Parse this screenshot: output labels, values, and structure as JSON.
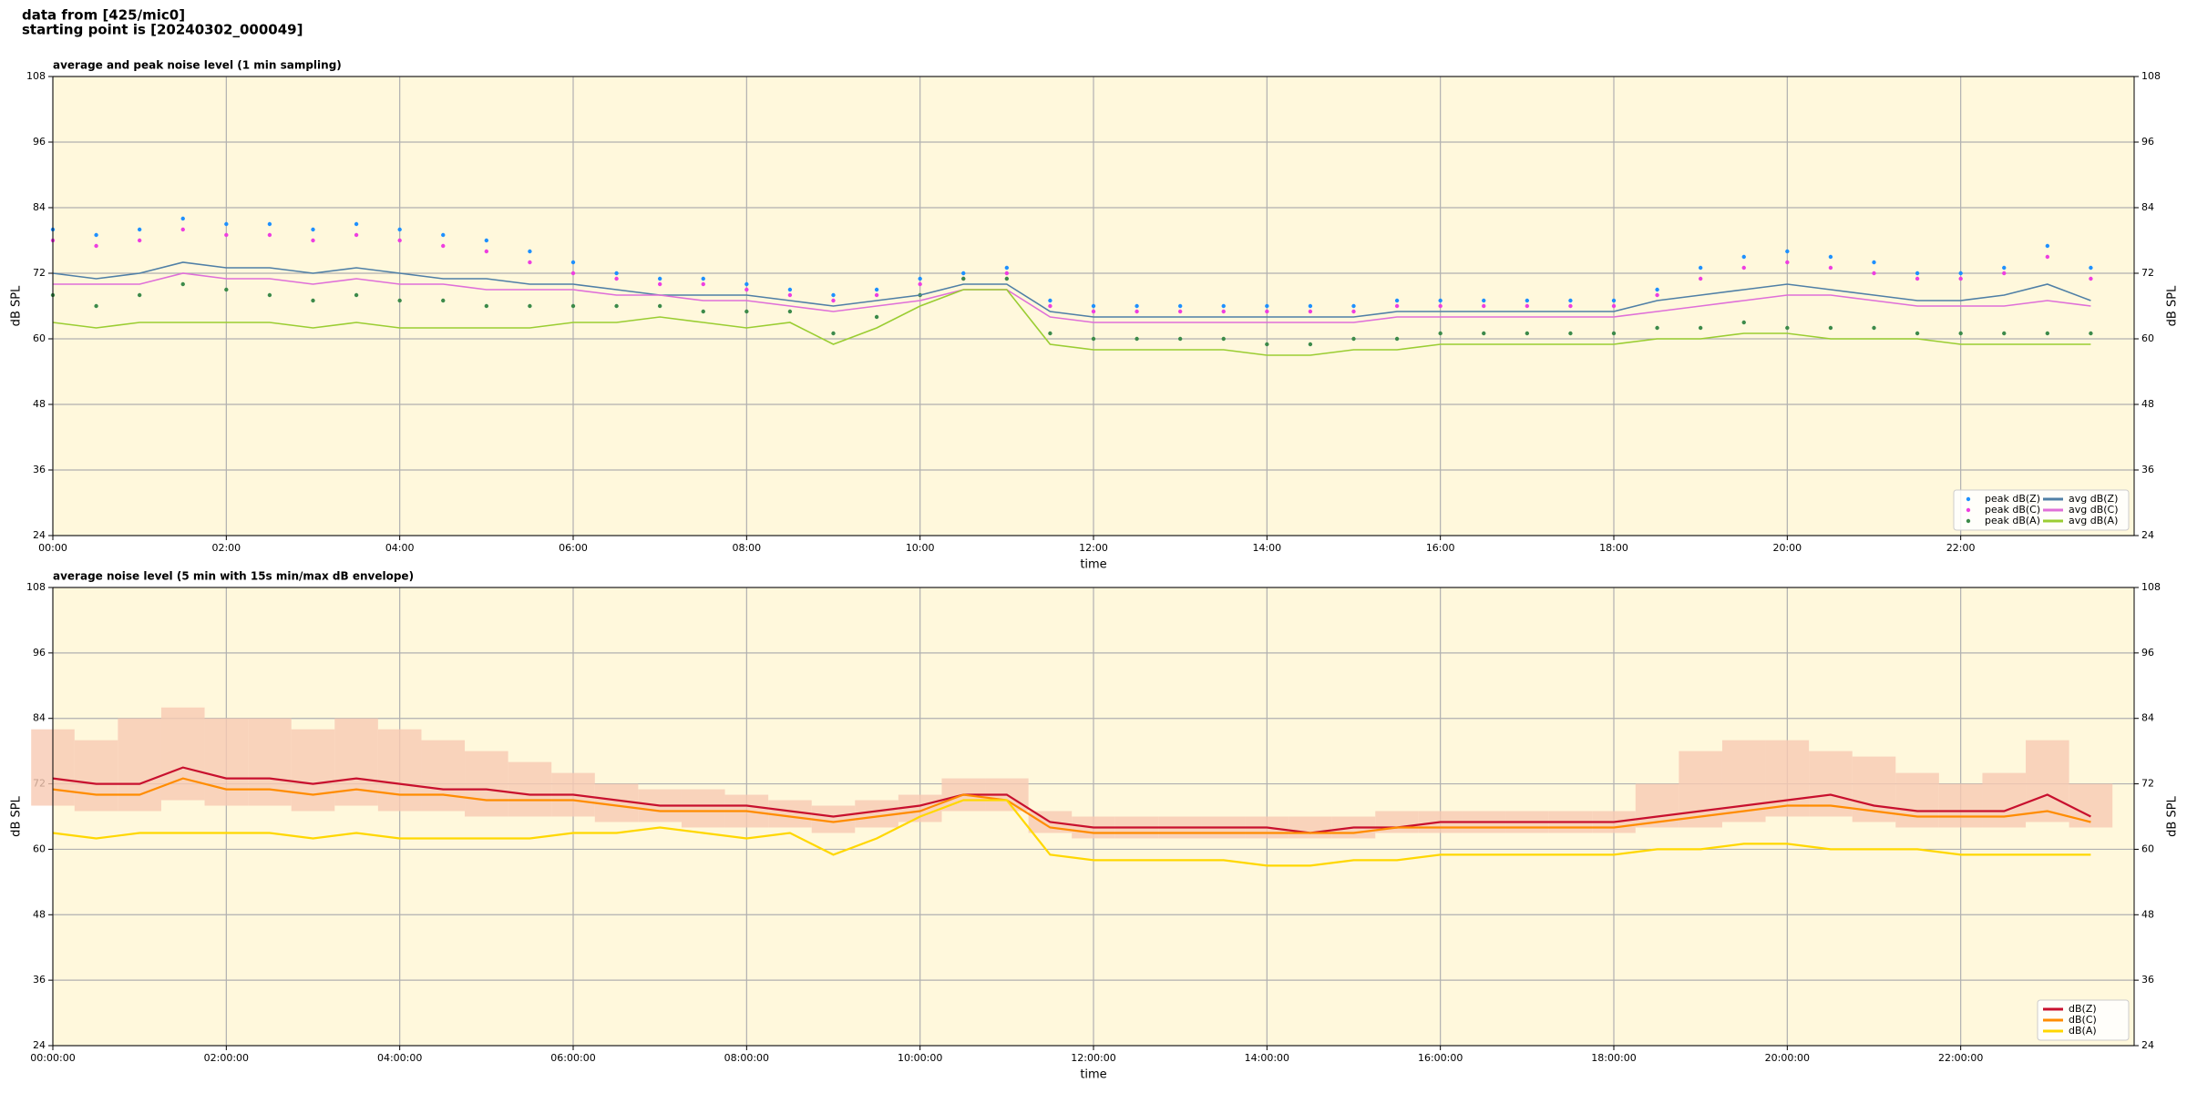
{
  "header": {
    "lines": [
      "data from [425/mic0]",
      "starting point is [20240302_000049]"
    ]
  },
  "chart_data": [
    {
      "type": "line",
      "title": "average and peak noise level (1 min sampling)",
      "x_label": "time",
      "y_label": "dB SPL",
      "xlim": [
        0,
        24
      ],
      "ylim": [
        24,
        108
      ],
      "xticks": [
        {
          "value": 0,
          "label": "00:00"
        },
        {
          "value": 2,
          "label": "02:00"
        },
        {
          "value": 4,
          "label": "04:00"
        },
        {
          "value": 6,
          "label": "06:00"
        },
        {
          "value": 8,
          "label": "08:00"
        },
        {
          "value": 10,
          "label": "10:00"
        },
        {
          "value": 12,
          "label": "12:00"
        },
        {
          "value": 14,
          "label": "14:00"
        },
        {
          "value": 16,
          "label": "16:00"
        },
        {
          "value": 18,
          "label": "18:00"
        },
        {
          "value": 20,
          "label": "20:00"
        },
        {
          "value": 22,
          "label": "22:00"
        }
      ],
      "yticks": [
        24,
        36,
        48,
        60,
        72,
        84,
        96,
        108
      ],
      "grid": true,
      "legend": "lower right",
      "legend_ncol": 2,
      "background": "#fff8dc",
      "x": [
        0,
        0.5,
        1,
        1.5,
        2,
        2.5,
        3,
        3.5,
        4,
        4.5,
        5,
        5.5,
        6,
        6.5,
        7,
        7.5,
        8,
        8.5,
        9,
        9.5,
        10,
        10.5,
        11,
        11.5,
        12,
        12.5,
        13,
        13.5,
        14,
        14.5,
        15,
        15.5,
        16,
        16.5,
        17,
        17.5,
        18,
        18.5,
        19,
        19.5,
        20,
        20.5,
        21,
        21.5,
        22,
        22.5,
        23,
        23.5
      ],
      "series": [
        {
          "name": "peak dB(Z)",
          "mode": "markers",
          "color": "#1e90ff",
          "values": [
            80,
            79,
            80,
            82,
            81,
            81,
            80,
            81,
            80,
            79,
            78,
            76,
            74,
            72,
            71,
            71,
            70,
            69,
            68,
            69,
            71,
            72,
            73,
            67,
            66,
            66,
            66,
            66,
            66,
            66,
            66,
            67,
            67,
            67,
            67,
            67,
            67,
            69,
            73,
            75,
            76,
            75,
            74,
            72,
            72,
            73,
            77,
            73
          ]
        },
        {
          "name": "peak dB(C)",
          "mode": "markers",
          "color": "#ee3ee0",
          "values": [
            78,
            77,
            78,
            80,
            79,
            79,
            78,
            79,
            78,
            77,
            76,
            74,
            72,
            71,
            70,
            70,
            69,
            68,
            67,
            68,
            70,
            71,
            72,
            66,
            65,
            65,
            65,
            65,
            65,
            65,
            65,
            66,
            66,
            66,
            66,
            66,
            66,
            68,
            71,
            73,
            74,
            73,
            72,
            71,
            71,
            72,
            75,
            71
          ]
        },
        {
          "name": "peak dB(A)",
          "mode": "markers",
          "color": "#3c8a4a",
          "values": [
            68,
            66,
            68,
            70,
            69,
            68,
            67,
            68,
            67,
            67,
            66,
            66,
            66,
            66,
            66,
            65,
            65,
            65,
            61,
            64,
            68,
            71,
            71,
            61,
            60,
            60,
            60,
            60,
            59,
            59,
            60,
            60,
            61,
            61,
            61,
            61,
            61,
            62,
            62,
            63,
            62,
            62,
            62,
            61,
            61,
            61,
            61,
            61
          ]
        },
        {
          "name": "avg dB(Z)",
          "mode": "lines",
          "color": "#4f7fa6",
          "values": [
            72,
            71,
            72,
            74,
            73,
            73,
            72,
            73,
            72,
            71,
            71,
            70,
            70,
            69,
            68,
            68,
            68,
            67,
            66,
            67,
            68,
            70,
            70,
            65,
            64,
            64,
            64,
            64,
            64,
            64,
            64,
            65,
            65,
            65,
            65,
            65,
            65,
            67,
            68,
            69,
            70,
            69,
            68,
            67,
            67,
            68,
            70,
            67
          ]
        },
        {
          "name": "avg dB(C)",
          "mode": "lines",
          "color": "#df6fd8",
          "values": [
            70,
            70,
            70,
            72,
            71,
            71,
            70,
            71,
            70,
            70,
            69,
            69,
            69,
            68,
            68,
            67,
            67,
            66,
            65,
            66,
            67,
            69,
            69,
            64,
            63,
            63,
            63,
            63,
            63,
            63,
            63,
            64,
            64,
            64,
            64,
            64,
            64,
            65,
            66,
            67,
            68,
            68,
            67,
            66,
            66,
            66,
            67,
            66
          ]
        },
        {
          "name": "avg dB(A)",
          "mode": "lines",
          "color": "#9acd32",
          "values": [
            63,
            62,
            63,
            63,
            63,
            63,
            62,
            63,
            62,
            62,
            62,
            62,
            63,
            63,
            64,
            63,
            62,
            63,
            59,
            62,
            66,
            69,
            69,
            59,
            58,
            58,
            58,
            58,
            57,
            57,
            58,
            58,
            59,
            59,
            59,
            59,
            59,
            60,
            60,
            61,
            61,
            60,
            60,
            60,
            59,
            59,
            59,
            59
          ]
        }
      ]
    },
    {
      "type": "line",
      "title": "average noise level (5 min with 15s min/max dB envelope)",
      "x_label": "time",
      "y_label": "dB SPL",
      "xlim": [
        0,
        24
      ],
      "ylim": [
        24,
        108
      ],
      "xticks": [
        {
          "value": 0,
          "label": "00:00:00"
        },
        {
          "value": 2,
          "label": "02:00:00"
        },
        {
          "value": 4,
          "label": "04:00:00"
        },
        {
          "value": 6,
          "label": "06:00:00"
        },
        {
          "value": 8,
          "label": "08:00:00"
        },
        {
          "value": 10,
          "label": "10:00:00"
        },
        {
          "value": 12,
          "label": "12:00:00"
        },
        {
          "value": 14,
          "label": "14:00:00"
        },
        {
          "value": 16,
          "label": "16:00:00"
        },
        {
          "value": 18,
          "label": "18:00:00"
        },
        {
          "value": 20,
          "label": "20:00:00"
        },
        {
          "value": 22,
          "label": "22:00:00"
        }
      ],
      "yticks": [
        24,
        36,
        48,
        60,
        72,
        84,
        96,
        108
      ],
      "grid": true,
      "legend": "lower right",
      "legend_ncol": 1,
      "background": "#fff8dc",
      "x": [
        0,
        0.5,
        1,
        1.5,
        2,
        2.5,
        3,
        3.5,
        4,
        4.5,
        5,
        5.5,
        6,
        6.5,
        7,
        7.5,
        8,
        8.5,
        9,
        9.5,
        10,
        10.5,
        11,
        11.5,
        12,
        12.5,
        13,
        13.5,
        14,
        14.5,
        15,
        15.5,
        16,
        16.5,
        17,
        17.5,
        18,
        18.5,
        19,
        19.5,
        20,
        20.5,
        21,
        21.5,
        22,
        22.5,
        23,
        23.5
      ],
      "envelope": {
        "color": "#f7c9b3",
        "low": [
          68,
          67,
          67,
          69,
          68,
          68,
          67,
          68,
          67,
          67,
          66,
          66,
          66,
          65,
          65,
          64,
          64,
          64,
          63,
          64,
          65,
          67,
          67,
          63,
          62,
          62,
          62,
          62,
          62,
          62,
          62,
          63,
          63,
          63,
          63,
          63,
          63,
          64,
          64,
          65,
          66,
          66,
          65,
          64,
          64,
          64,
          65,
          64
        ],
        "high": [
          82,
          80,
          84,
          86,
          84,
          84,
          82,
          84,
          82,
          80,
          78,
          76,
          74,
          72,
          71,
          71,
          70,
          69,
          68,
          69,
          70,
          73,
          73,
          67,
          66,
          66,
          66,
          66,
          66,
          66,
          66,
          67,
          67,
          67,
          67,
          67,
          67,
          72,
          78,
          80,
          80,
          78,
          77,
          74,
          72,
          74,
          80,
          72
        ]
      },
      "series": [
        {
          "name": "dB(Z)",
          "mode": "lines",
          "color": "#c8102e",
          "values": [
            73,
            72,
            72,
            75,
            73,
            73,
            72,
            73,
            72,
            71,
            71,
            70,
            70,
            69,
            68,
            68,
            68,
            67,
            66,
            67,
            68,
            70,
            70,
            65,
            64,
            64,
            64,
            64,
            64,
            63,
            64,
            64,
            65,
            65,
            65,
            65,
            65,
            66,
            67,
            68,
            69,
            70,
            68,
            67,
            67,
            67,
            70,
            66
          ]
        },
        {
          "name": "dB(C)",
          "mode": "lines",
          "color": "#ff8c00",
          "values": [
            71,
            70,
            70,
            73,
            71,
            71,
            70,
            71,
            70,
            70,
            69,
            69,
            69,
            68,
            67,
            67,
            67,
            66,
            65,
            66,
            67,
            70,
            69,
            64,
            63,
            63,
            63,
            63,
            63,
            63,
            63,
            64,
            64,
            64,
            64,
            64,
            64,
            65,
            66,
            67,
            68,
            68,
            67,
            66,
            66,
            66,
            67,
            65
          ]
        },
        {
          "name": "dB(A)",
          "mode": "lines",
          "color": "#ffd700",
          "values": [
            63,
            62,
            63,
            63,
            63,
            63,
            62,
            63,
            62,
            62,
            62,
            62,
            63,
            63,
            64,
            63,
            62,
            63,
            59,
            62,
            66,
            69,
            69,
            59,
            58,
            58,
            58,
            58,
            57,
            57,
            58,
            58,
            59,
            59,
            59,
            59,
            59,
            60,
            60,
            61,
            61,
            60,
            60,
            60,
            59,
            59,
            59,
            59
          ]
        }
      ]
    }
  ]
}
